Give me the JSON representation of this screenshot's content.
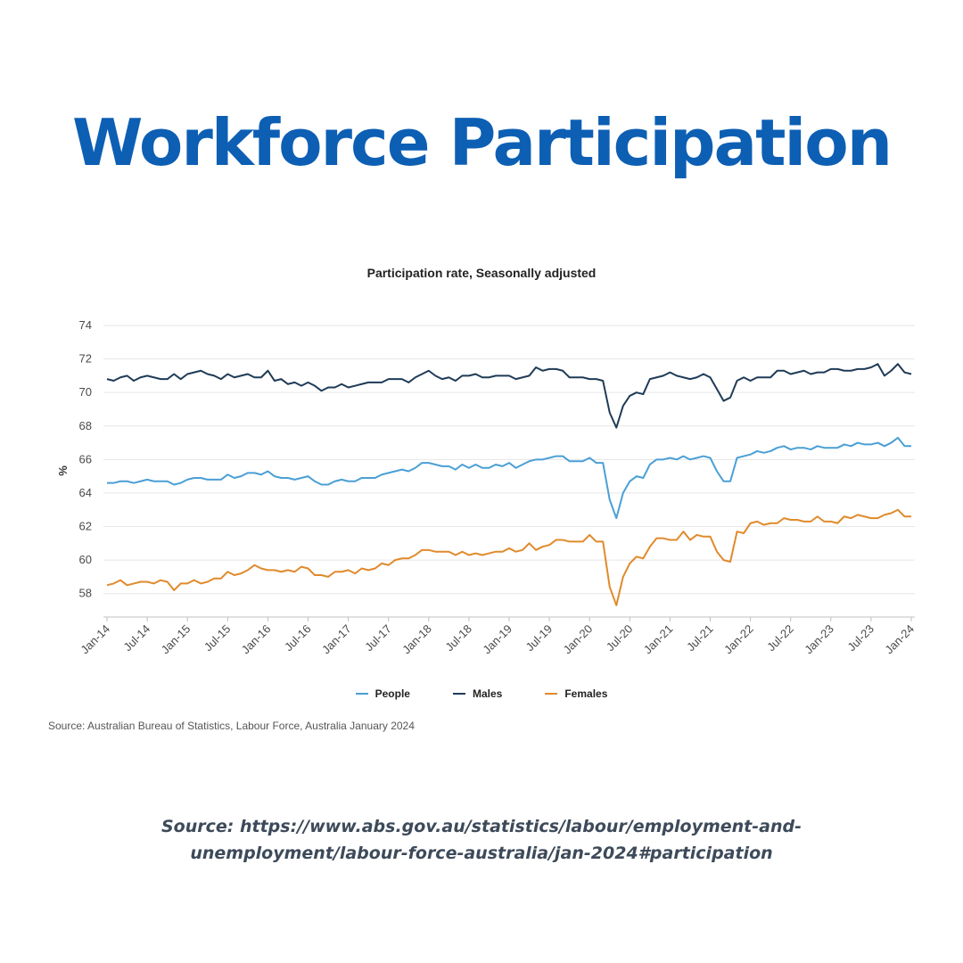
{
  "heading": "Workforce Participation",
  "footer": {
    "line1": "Source: https://www.abs.gov.au/statistics/labour/employment-and-",
    "line2": "unemployment/labour-force-australia/jan-2024#participation"
  },
  "colors": {
    "heading": "#0d5fb4",
    "people": "#4a9fd5",
    "males": "#1f3b57",
    "females": "#e08a2c"
  },
  "chart_data": {
    "type": "line",
    "title": "Participation rate, Seasonally adjusted",
    "ylabel": "%",
    "ylim": [
      56.6,
      74
    ],
    "yticks": [
      58,
      60,
      62,
      64,
      66,
      68,
      70,
      72,
      74
    ],
    "grid": true,
    "legend_position": "bottom",
    "source_note": "Source: Australian Bureau of Statistics, Labour Force, Australia January 2024",
    "x_tick_labels": [
      "Jan-14",
      "Jul-14",
      "Jan-15",
      "Jul-15",
      "Jan-16",
      "Jul-16",
      "Jan-17",
      "Jul-17",
      "Jan-18",
      "Jul-18",
      "Jan-19",
      "Jul-19",
      "Jan-20",
      "Jul-20",
      "Jan-21",
      "Jul-21",
      "Jan-22",
      "Jul-22",
      "Jan-23",
      "Jul-23",
      "Jan-24"
    ],
    "x_start": "Jan-14",
    "x_end": "Jan-24",
    "series": [
      {
        "name": "People",
        "color": "#4a9fd5",
        "values": [
          64.6,
          64.6,
          64.7,
          64.7,
          64.6,
          64.7,
          64.8,
          64.7,
          64.7,
          64.7,
          64.5,
          64.6,
          64.8,
          64.9,
          64.9,
          64.8,
          64.8,
          64.8,
          65.1,
          64.9,
          65.0,
          65.2,
          65.2,
          65.1,
          65.3,
          65.0,
          64.9,
          64.9,
          64.8,
          64.9,
          65.0,
          64.7,
          64.5,
          64.5,
          64.7,
          64.8,
          64.7,
          64.7,
          64.9,
          64.9,
          64.9,
          65.1,
          65.2,
          65.3,
          65.4,
          65.3,
          65.5,
          65.8,
          65.8,
          65.7,
          65.6,
          65.6,
          65.4,
          65.7,
          65.5,
          65.7,
          65.5,
          65.5,
          65.7,
          65.6,
          65.8,
          65.5,
          65.7,
          65.9,
          66.0,
          66.0,
          66.1,
          66.2,
          66.2,
          65.9,
          65.9,
          65.9,
          66.1,
          65.8,
          65.8,
          63.6,
          62.5,
          64.0,
          64.7,
          65.0,
          64.9,
          65.7,
          66.0,
          66.0,
          66.1,
          66.0,
          66.2,
          66.0,
          66.1,
          66.2,
          66.1,
          65.3,
          64.7,
          64.7,
          66.1,
          66.2,
          66.3,
          66.5,
          66.4,
          66.5,
          66.7,
          66.8,
          66.6,
          66.7,
          66.7,
          66.6,
          66.8,
          66.7,
          66.7,
          66.7,
          66.9,
          66.8,
          67.0,
          66.9,
          66.9,
          67.0,
          66.8,
          67.0,
          67.3,
          66.8,
          66.8
        ]
      },
      {
        "name": "Males",
        "color": "#1f3b57",
        "values": [
          70.8,
          70.7,
          70.9,
          71.0,
          70.7,
          70.9,
          71.0,
          70.9,
          70.8,
          70.8,
          71.1,
          70.8,
          71.1,
          71.2,
          71.3,
          71.1,
          71.0,
          70.8,
          71.1,
          70.9,
          71.0,
          71.1,
          70.9,
          70.9,
          71.3,
          70.7,
          70.8,
          70.5,
          70.6,
          70.4,
          70.6,
          70.4,
          70.1,
          70.3,
          70.3,
          70.5,
          70.3,
          70.4,
          70.5,
          70.6,
          70.6,
          70.6,
          70.8,
          70.8,
          70.8,
          70.6,
          70.9,
          71.1,
          71.3,
          71.0,
          70.8,
          70.9,
          70.7,
          71.0,
          71.0,
          71.1,
          70.9,
          70.9,
          71.0,
          71.0,
          71.0,
          70.8,
          70.9,
          71.0,
          71.5,
          71.3,
          71.4,
          71.4,
          71.3,
          70.9,
          70.9,
          70.9,
          70.8,
          70.8,
          70.7,
          68.8,
          67.9,
          69.2,
          69.8,
          70.0,
          69.9,
          70.8,
          70.9,
          71.0,
          71.2,
          71.0,
          70.9,
          70.8,
          70.9,
          71.1,
          70.9,
          70.2,
          69.5,
          69.7,
          70.7,
          70.9,
          70.7,
          70.9,
          70.9,
          70.9,
          71.3,
          71.3,
          71.1,
          71.2,
          71.3,
          71.1,
          71.2,
          71.2,
          71.4,
          71.4,
          71.3,
          71.3,
          71.4,
          71.4,
          71.5,
          71.7,
          71.0,
          71.3,
          71.7,
          71.2,
          71.1
        ]
      },
      {
        "name": "Females",
        "color": "#e08a2c",
        "values": [
          58.5,
          58.6,
          58.8,
          58.5,
          58.6,
          58.7,
          58.7,
          58.6,
          58.8,
          58.7,
          58.2,
          58.6,
          58.6,
          58.8,
          58.6,
          58.7,
          58.9,
          58.9,
          59.3,
          59.1,
          59.2,
          59.4,
          59.7,
          59.5,
          59.4,
          59.4,
          59.3,
          59.4,
          59.3,
          59.6,
          59.5,
          59.1,
          59.1,
          59.0,
          59.3,
          59.3,
          59.4,
          59.2,
          59.5,
          59.4,
          59.5,
          59.8,
          59.7,
          60.0,
          60.1,
          60.1,
          60.3,
          60.6,
          60.6,
          60.5,
          60.5,
          60.5,
          60.3,
          60.5,
          60.3,
          60.4,
          60.3,
          60.4,
          60.5,
          60.5,
          60.7,
          60.5,
          60.6,
          61.0,
          60.6,
          60.8,
          60.9,
          61.2,
          61.2,
          61.1,
          61.1,
          61.1,
          61.5,
          61.1,
          61.1,
          58.4,
          57.3,
          59.0,
          59.8,
          60.2,
          60.1,
          60.8,
          61.3,
          61.3,
          61.2,
          61.2,
          61.7,
          61.2,
          61.5,
          61.4,
          61.4,
          60.5,
          60.0,
          59.9,
          61.7,
          61.6,
          62.2,
          62.3,
          62.1,
          62.2,
          62.2,
          62.5,
          62.4,
          62.4,
          62.3,
          62.3,
          62.6,
          62.3,
          62.3,
          62.2,
          62.6,
          62.5,
          62.7,
          62.6,
          62.5,
          62.5,
          62.7,
          62.8,
          63.0,
          62.6,
          62.6
        ]
      }
    ]
  }
}
